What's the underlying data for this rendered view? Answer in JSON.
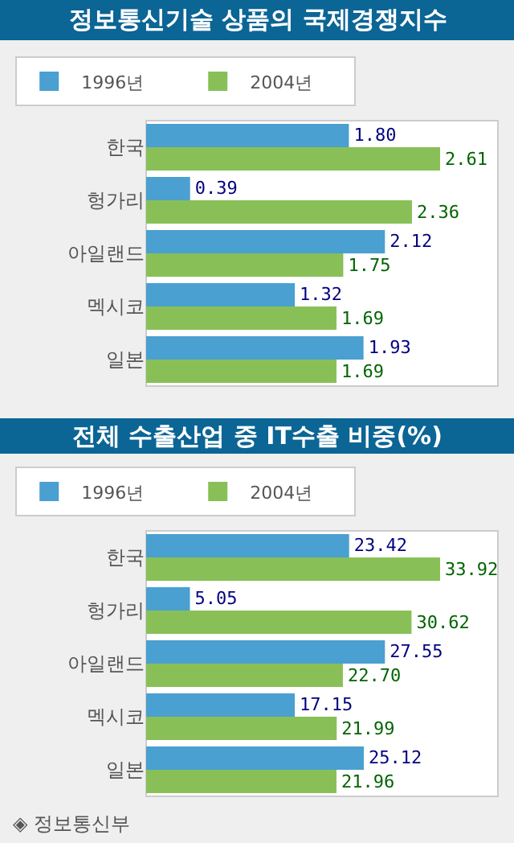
{
  "chart_data": [
    {
      "type": "bar",
      "orientation": "horizontal",
      "title": "정보통신기술 상품의 국제경쟁지수",
      "categories": [
        "한국",
        "헝가리",
        "아일랜드",
        "멕시코",
        "일본"
      ],
      "legend": "top left",
      "grid": false,
      "tick_labels": "y",
      "series": [
        {
          "name": "1996년",
          "color": "#4aa0d0",
          "values": [
            1.8,
            0.39,
            2.12,
            1.32,
            1.93
          ],
          "value_labels": [
            "1.80",
            "0.39",
            "2.12",
            "1.32",
            "1.93"
          ]
        },
        {
          "name": "2004년",
          "color": "#88c057",
          "values": [
            2.61,
            2.36,
            1.75,
            1.69,
            1.69
          ],
          "value_labels": [
            "2.61",
            "2.36",
            "1.75",
            "1.69",
            "1.69"
          ]
        }
      ]
    },
    {
      "type": "bar",
      "orientation": "horizontal",
      "title": "전체 수출산업 중 IT수출 비중(%)",
      "categories": [
        "한국",
        "헝가리",
        "아일랜드",
        "멕시코",
        "일본"
      ],
      "legend": "top left",
      "grid": false,
      "tick_labels": "y",
      "series": [
        {
          "name": "1996년",
          "color": "#4aa0d0",
          "values": [
            23.42,
            5.05,
            27.55,
            17.15,
            25.12
          ],
          "value_labels": [
            "23.42",
            "5.05",
            "27.55",
            "17.15",
            "25.12"
          ]
        },
        {
          "name": "2004년",
          "color": "#88c057",
          "values": [
            33.92,
            30.62,
            22.7,
            21.99,
            21.96
          ],
          "value_labels": [
            "33.92",
            "30.62",
            "22.70",
            "21.99",
            "21.96"
          ]
        }
      ],
      "annotations": [
        "◈ 정보통신부"
      ]
    }
  ]
}
